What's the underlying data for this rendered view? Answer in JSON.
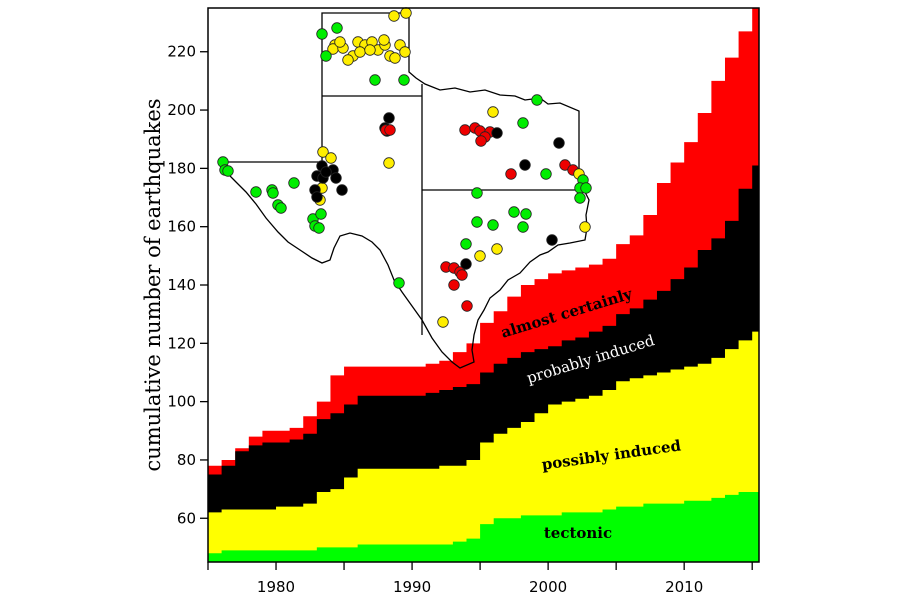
{
  "chart_data": {
    "type": "area",
    "stacked": true,
    "title": "",
    "xlabel": "",
    "ylabel": "cumulative number of earthquakes",
    "xlim": [
      1975,
      2015.5
    ],
    "ylim": [
      45,
      235
    ],
    "x_ticks": [
      1980,
      1990,
      2000,
      2010
    ],
    "y_ticks": [
      60,
      80,
      100,
      120,
      140,
      160,
      180,
      200,
      220
    ],
    "grid": false,
    "legend": "inline labels on bands",
    "x": [
      1975,
      1976,
      1977,
      1978,
      1979,
      1980,
      1981,
      1982,
      1983,
      1984,
      1985,
      1986,
      1987,
      1988,
      1989,
      1990,
      1991,
      1992,
      1993,
      1994,
      1995,
      1996,
      1997,
      1998,
      1999,
      2000,
      2001,
      2002,
      2003,
      2004,
      2005,
      2006,
      2007,
      2008,
      2009,
      2010,
      2011,
      2012,
      2013,
      2014,
      2015
    ],
    "series_note_cumulative_top": true,
    "series": [
      {
        "name": "tectonic",
        "color": "#00ff00",
        "values": [
          48,
          49,
          49,
          49,
          49,
          49,
          49,
          49,
          50,
          50,
          50,
          51,
          51,
          51,
          51,
          51,
          51,
          51,
          52,
          53,
          58,
          60,
          60,
          61,
          61,
          61,
          62,
          62,
          62,
          63,
          64,
          64,
          65,
          65,
          65,
          66,
          66,
          67,
          68,
          69,
          69
        ]
      },
      {
        "name": "possibly induced",
        "color": "#ffff00",
        "values": [
          62,
          63,
          63,
          63,
          63,
          64,
          64,
          65,
          69,
          70,
          74,
          77,
          77,
          77,
          77,
          77,
          77,
          78,
          78,
          80,
          86,
          89,
          91,
          93,
          96,
          99,
          100,
          101,
          102,
          104,
          107,
          108,
          109,
          110,
          111,
          112,
          113,
          115,
          118,
          121,
          124
        ]
      },
      {
        "name": "probably induced",
        "color": "#000000",
        "values": [
          75,
          78,
          83,
          85,
          86,
          86,
          87,
          89,
          94,
          96,
          99,
          102,
          102,
          102,
          102,
          102,
          103,
          104,
          105,
          106,
          110,
          113,
          115,
          117,
          118,
          119,
          121,
          122,
          124,
          126,
          130,
          132,
          135,
          138,
          142,
          146,
          152,
          156,
          162,
          173,
          181
        ]
      },
      {
        "name": "almost certainly",
        "color": "#ff0000",
        "values": [
          78,
          80,
          84,
          88,
          90,
          90,
          91,
          95,
          100,
          109,
          112,
          112,
          112,
          112,
          112,
          112,
          113,
          114,
          117,
          120,
          127,
          131,
          136,
          140,
          142,
          144,
          145,
          146,
          147,
          149,
          154,
          157,
          164,
          175,
          182,
          189,
          199,
          210,
          218,
          227,
          235
        ]
      }
    ],
    "inset": "map of Texas with earthquake locations colored by category"
  }
}
